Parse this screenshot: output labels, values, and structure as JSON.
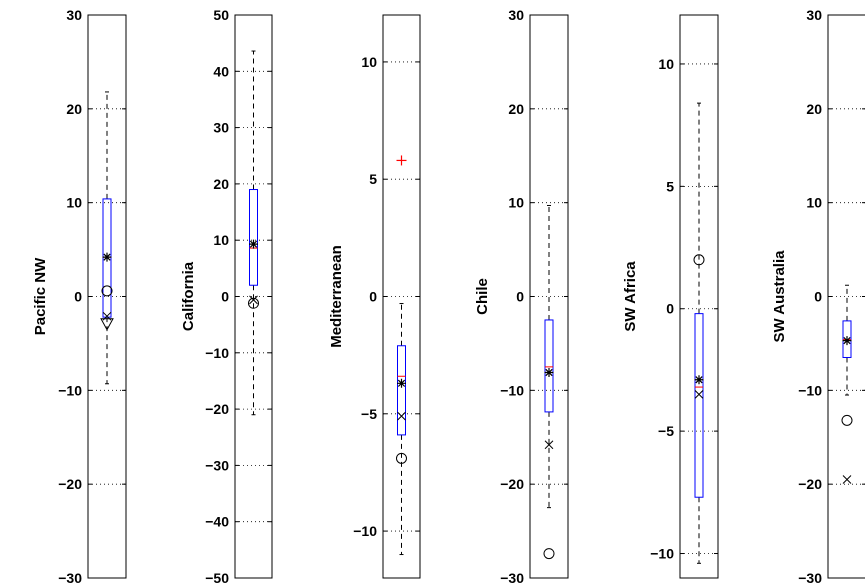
{
  "chart_data": [
    {
      "type": "box",
      "ylabel": "Pacific NW",
      "ylim": [
        -30,
        30
      ],
      "yticks": [
        -30,
        -20,
        -10,
        0,
        10,
        20,
        30
      ],
      "ytick_labels": [
        "−30",
        "−20",
        "−10",
        "0",
        "10",
        "20",
        "30"
      ],
      "grid": true,
      "box": {
        "q1": -2.2,
        "median": 4.2,
        "q3": 10.4,
        "whisker_low": -9.3,
        "whisker_high": 21.8,
        "mean": 4.2
      },
      "outliers": [],
      "markers": [
        {
          "symbol": "circle",
          "value": 0.6
        },
        {
          "symbol": "x",
          "value": -2.1
        },
        {
          "symbol": "triangle-down",
          "value": -2.9
        }
      ]
    },
    {
      "type": "box",
      "ylabel": "California",
      "ylim": [
        -50,
        50
      ],
      "yticks": [
        -50,
        -40,
        -30,
        -20,
        -10,
        0,
        10,
        20,
        30,
        40,
        50
      ],
      "ytick_labels": [
        "−50",
        "−40",
        "−30",
        "−20",
        "−10",
        "0",
        "10",
        "20",
        "30",
        "40",
        "50"
      ],
      "grid": true,
      "box": {
        "q1": 2.0,
        "median": 8.6,
        "q3": 19.0,
        "whisker_low": -21.0,
        "whisker_high": 43.6,
        "mean": 9.3
      },
      "outliers": [],
      "markers": [
        {
          "symbol": "circle",
          "value": -1.2
        },
        {
          "symbol": "x",
          "value": -0.6
        }
      ]
    },
    {
      "type": "box",
      "ylabel": "Mediterranean",
      "ylim": [
        -12,
        12
      ],
      "yticks": [
        -10,
        -5,
        0,
        5,
        10
      ],
      "ytick_labels": [
        "−10",
        "−5",
        "0",
        "5",
        "10"
      ],
      "grid": true,
      "box": {
        "q1": -5.9,
        "median": -3.4,
        "q3": -2.1,
        "whisker_low": -11.0,
        "whisker_high": -0.3,
        "mean": -3.7
      },
      "outliers": [
        5.8
      ],
      "markers": [
        {
          "symbol": "x",
          "value": -5.1
        },
        {
          "symbol": "circle",
          "value": -6.9
        }
      ]
    },
    {
      "type": "box",
      "ylabel": "Chile",
      "ylim": [
        -30,
        30
      ],
      "yticks": [
        -30,
        -20,
        -10,
        0,
        10,
        20,
        30
      ],
      "ytick_labels": [
        "−30",
        "−20",
        "−10",
        "0",
        "10",
        "20",
        "30"
      ],
      "grid": true,
      "box": {
        "q1": -12.3,
        "median": -7.5,
        "q3": -2.5,
        "whisker_low": -22.5,
        "whisker_high": 9.7,
        "mean": -8.1
      },
      "outliers": [],
      "markers": [
        {
          "symbol": "x",
          "value": -15.8
        },
        {
          "symbol": "circle",
          "value": -27.4
        }
      ]
    },
    {
      "type": "box",
      "ylabel": "SW Africa",
      "ylim": [
        -11,
        12
      ],
      "yticks": [
        -10,
        -5,
        0,
        5,
        10
      ],
      "ytick_labels": [
        "−10",
        "−5",
        "0",
        "5",
        "10"
      ],
      "grid": true,
      "box": {
        "q1": -7.7,
        "median": -3.2,
        "q3": -0.2,
        "whisker_low": -10.4,
        "whisker_high": 8.4,
        "mean": -2.9
      },
      "outliers": [],
      "markers": [
        {
          "symbol": "circle",
          "value": 2.0
        },
        {
          "symbol": "x",
          "value": -3.5
        }
      ]
    },
    {
      "type": "box",
      "ylabel": "SW Australia",
      "ylim": [
        -30,
        30
      ],
      "yticks": [
        -30,
        -20,
        -10,
        0,
        10,
        20,
        30
      ],
      "ytick_labels": [
        "−30",
        "−20",
        "−10",
        "0",
        "10",
        "20",
        "30"
      ],
      "grid": true,
      "box": {
        "q1": -6.5,
        "median": -4.6,
        "q3": -2.6,
        "whisker_low": -10.5,
        "whisker_high": 1.2,
        "mean": -4.7
      },
      "outliers": [],
      "markers": [
        {
          "symbol": "circle",
          "value": -13.2
        },
        {
          "symbol": "x",
          "value": -19.5
        }
      ]
    }
  ],
  "colors": {
    "box": "#0000ff",
    "median": "#ff0000",
    "outlier": "#ff0000",
    "grid": "#000000",
    "marker": "#000000"
  }
}
